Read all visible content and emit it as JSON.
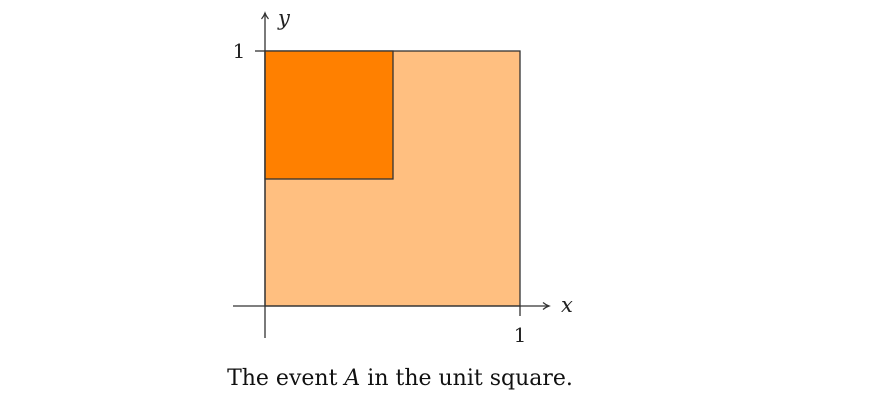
{
  "diagram": {
    "x_axis_label": "x",
    "y_axis_label": "y",
    "x_tick_label": "1",
    "y_tick_label": "1",
    "unit_square_color": "#FFBF80",
    "event_region_color": "#FF8000",
    "stroke_color": "#333333"
  },
  "caption": {
    "before": "The event ",
    "symbol": "A",
    "after": " in the unit square."
  }
}
